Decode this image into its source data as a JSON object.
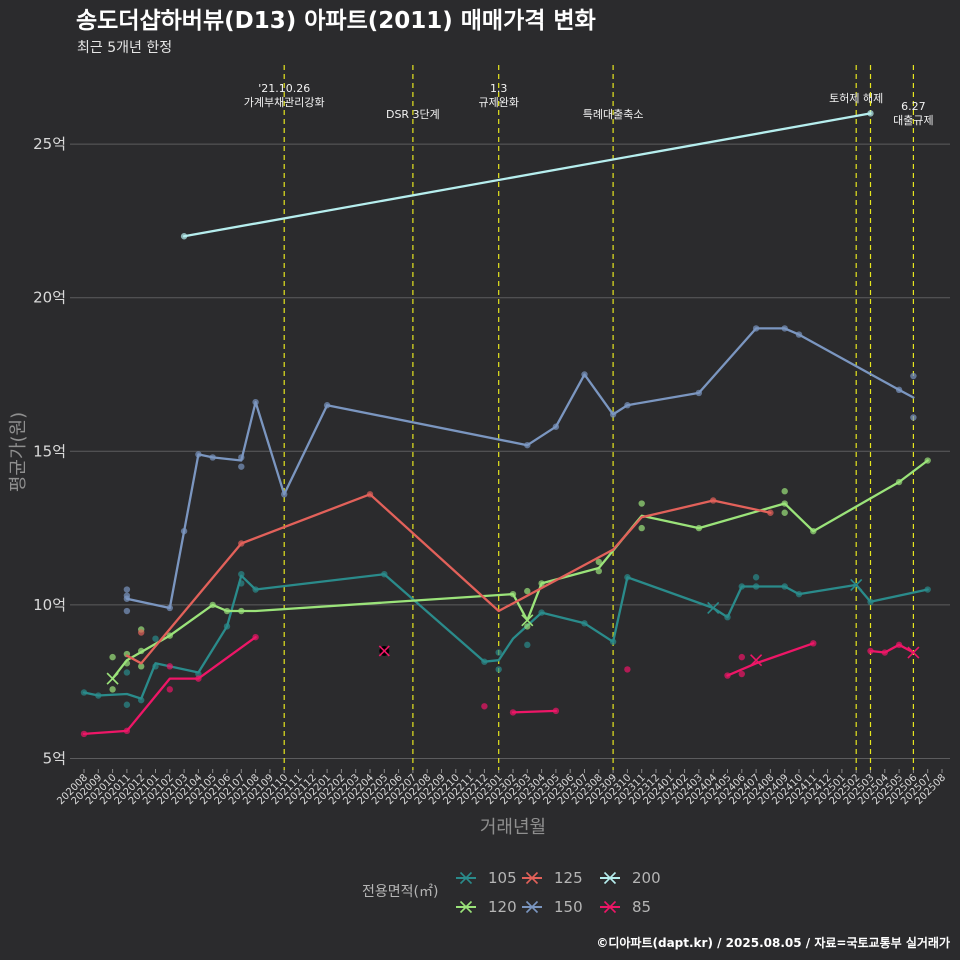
{
  "chart_data": {
    "type": "line",
    "title": "송도더샵하버뷰(D13) 아파트(2011) 매매가격 변화",
    "subtitle": "최근 5개년 한정",
    "xlabel": "거래년월",
    "ylabel": "평균가(원)",
    "caption": "©디아파트(dapt.kr) / 2025.08.05 / 자료=국토교통부 실거래가",
    "legend_title": "전용면적(㎡)",
    "legend_position": "bottom",
    "grid": true,
    "ylim": [
      4.5,
      27
    ],
    "yticks": [
      5,
      10,
      15,
      20,
      25
    ],
    "ytick_labels": [
      "5억",
      "10억",
      "15억",
      "20억",
      "25억"
    ],
    "x_start": "2020-08",
    "x_end": "2025-08",
    "x_categories": [
      "202008",
      "202009",
      "202010",
      "202011",
      "202012",
      "202101",
      "202102",
      "202103",
      "202104",
      "202105",
      "202106",
      "202107",
      "202108",
      "202109",
      "202110",
      "202111",
      "202112",
      "202201",
      "202202",
      "202203",
      "202204",
      "202205",
      "202206",
      "202207",
      "202208",
      "202209",
      "202210",
      "202211",
      "202212",
      "202301",
      "202302",
      "202303",
      "202304",
      "202305",
      "202306",
      "202307",
      "202308",
      "202309",
      "202310",
      "202311",
      "202312",
      "202401",
      "202402",
      "202403",
      "202404",
      "202405",
      "202406",
      "202407",
      "202408",
      "202409",
      "202410",
      "202411",
      "202412",
      "202501",
      "202502",
      "202503",
      "202504",
      "202505",
      "202506",
      "202507",
      "202508"
    ],
    "events": [
      {
        "date": "2021-10",
        "lines": [
          "'21.10.26",
          "가계부채관리강화"
        ]
      },
      {
        "date": "2022-07",
        "lines": [
          "DSR 3단계"
        ]
      },
      {
        "date": "2023-01",
        "lines": [
          "1.3",
          "규제완화"
        ]
      },
      {
        "date": "2023-09",
        "lines": [
          "특례대출축소"
        ]
      },
      {
        "date": "2025-02",
        "lines": [
          "토허제 해제"
        ]
      },
      {
        "date": "2025-03",
        "lines": []
      },
      {
        "date": "2025-06",
        "lines": [
          "6.27",
          "대출규제"
        ]
      }
    ],
    "series": [
      {
        "name": "105",
        "color": "#2a8b8b",
        "line": [
          [
            "2020-08",
            7.15
          ],
          [
            "2020-09",
            7.05
          ],
          [
            "2020-11",
            7.1
          ],
          [
            "2020-12",
            6.95
          ],
          [
            "2021-01",
            8.1
          ],
          [
            "2021-04",
            7.8
          ],
          [
            "2021-06",
            9.3
          ],
          [
            "2021-07",
            10.95
          ],
          [
            "2021-08",
            10.5
          ],
          [
            "2022-05",
            11.0
          ],
          [
            "2022-12",
            8.15
          ],
          [
            "2023-01",
            8.2
          ],
          [
            "2023-02",
            8.9
          ],
          [
            "2023-04",
            9.75
          ],
          [
            "2023-07",
            9.4
          ],
          [
            "2023-09",
            8.8
          ],
          [
            "2023-10",
            10.9
          ],
          [
            "2024-04",
            9.9
          ],
          [
            "2024-05",
            9.6
          ],
          [
            "2024-06",
            10.6
          ],
          [
            "2024-09",
            10.6
          ],
          [
            "2024-10",
            10.35
          ],
          [
            "2025-02",
            10.65
          ],
          [
            "2025-03",
            10.1
          ],
          [
            "2025-07",
            10.5
          ]
        ],
        "points": [
          [
            "2020-08",
            7.15
          ],
          [
            "2020-09",
            7.05
          ],
          [
            "2020-11",
            6.75
          ],
          [
            "2020-11",
            7.8
          ],
          [
            "2020-12",
            6.9
          ],
          [
            "2021-01",
            8.0
          ],
          [
            "2021-01",
            8.9
          ],
          [
            "2021-04",
            7.75
          ],
          [
            "2021-06",
            9.3
          ],
          [
            "2021-07",
            11.0
          ],
          [
            "2021-07",
            10.7
          ],
          [
            "2021-08",
            10.5
          ],
          [
            "2022-05",
            11.0
          ],
          [
            "2022-12",
            8.15
          ],
          [
            "2023-01",
            7.9
          ],
          [
            "2023-01",
            8.45
          ],
          [
            "2023-03",
            8.7
          ],
          [
            "2023-04",
            9.75
          ],
          [
            "2023-07",
            9.4
          ],
          [
            "2023-09",
            8.8
          ],
          [
            "2023-10",
            10.9
          ],
          [
            "2024-05",
            9.6
          ],
          [
            "2024-06",
            10.6
          ],
          [
            "2024-07",
            10.9
          ],
          [
            "2024-07",
            10.6
          ],
          [
            "2024-09",
            10.6
          ],
          [
            "2024-10",
            10.35
          ],
          [
            "2025-03",
            10.1
          ],
          [
            "2025-07",
            10.5
          ]
        ],
        "x_marks": [
          [
            "2024-04",
            9.9
          ],
          [
            "2025-02",
            10.65
          ]
        ]
      },
      {
        "name": "120",
        "color": "#9be37a",
        "line": [
          [
            "2020-10",
            7.6
          ],
          [
            "2020-11",
            8.2
          ],
          [
            "2021-02",
            9.0
          ],
          [
            "2021-05",
            10.0
          ],
          [
            "2021-06",
            9.8
          ],
          [
            "2021-08",
            9.8
          ],
          [
            "2023-02",
            10.35
          ],
          [
            "2023-03",
            9.5
          ],
          [
            "2023-04",
            10.7
          ],
          [
            "2023-08",
            11.2
          ],
          [
            "2023-11",
            12.9
          ],
          [
            "2024-03",
            12.5
          ],
          [
            "2024-09",
            13.3
          ],
          [
            "2024-11",
            12.4
          ],
          [
            "2025-05",
            14.0
          ],
          [
            "2025-07",
            14.7
          ]
        ],
        "points": [
          [
            "2020-10",
            8.3
          ],
          [
            "2020-10",
            7.25
          ],
          [
            "2020-11",
            8.4
          ],
          [
            "2020-11",
            8.1
          ],
          [
            "2020-12",
            8.5
          ],
          [
            "2020-12",
            9.2
          ],
          [
            "2020-12",
            8.0
          ],
          [
            "2021-02",
            9.0
          ],
          [
            "2021-05",
            10.0
          ],
          [
            "2021-06",
            9.8
          ],
          [
            "2021-07",
            9.8
          ],
          [
            "2023-02",
            10.35
          ],
          [
            "2023-03",
            9.3
          ],
          [
            "2023-03",
            10.45
          ],
          [
            "2023-04",
            10.7
          ],
          [
            "2023-08",
            11.4
          ],
          [
            "2023-08",
            11.1
          ],
          [
            "2023-11",
            13.3
          ],
          [
            "2023-11",
            12.5
          ],
          [
            "2024-03",
            12.5
          ],
          [
            "2024-09",
            13.7
          ],
          [
            "2024-09",
            13.3
          ],
          [
            "2024-09",
            13.0
          ],
          [
            "2024-11",
            12.4
          ],
          [
            "2025-05",
            14.0
          ],
          [
            "2025-07",
            14.7
          ]
        ],
        "x_marks": [
          [
            "2020-10",
            7.6
          ],
          [
            "2023-03",
            9.5
          ]
        ]
      },
      {
        "name": "125",
        "color": "#e2615a",
        "line": [
          [
            "2020-11",
            8.35
          ],
          [
            "2020-12",
            8.1
          ],
          [
            "2021-07",
            12.0
          ],
          [
            "2022-04",
            13.6
          ],
          [
            "2023-01",
            9.8
          ],
          [
            "2023-09",
            11.8
          ],
          [
            "2023-11",
            12.85
          ],
          [
            "2024-04",
            13.4
          ],
          [
            "2024-08",
            13.0
          ]
        ],
        "points": [
          [
            "2020-12",
            9.1
          ],
          [
            "2021-07",
            12.0
          ],
          [
            "2022-04",
            13.6
          ],
          [
            "2024-04",
            13.4
          ],
          [
            "2024-08",
            13.0
          ]
        ],
        "x_marks": []
      },
      {
        "name": "150",
        "color": "#7b96c0",
        "line": [
          [
            "2020-11",
            10.2
          ],
          [
            "2021-02",
            9.9
          ],
          [
            "2021-03",
            12.4
          ],
          [
            "2021-04",
            14.9
          ],
          [
            "2021-05",
            14.8
          ],
          [
            "2021-07",
            14.7
          ],
          [
            "2021-08",
            16.6
          ],
          [
            "2021-10",
            13.6
          ],
          [
            "2022-01",
            16.5
          ],
          [
            "2023-03",
            15.2
          ],
          [
            "2023-05",
            15.8
          ],
          [
            "2023-07",
            17.5
          ],
          [
            "2023-09",
            16.2
          ],
          [
            "2023-10",
            16.5
          ],
          [
            "2024-03",
            16.9
          ],
          [
            "2024-07",
            19.0
          ],
          [
            "2024-09",
            19.0
          ],
          [
            "2024-10",
            18.8
          ],
          [
            "2025-05",
            17.0
          ],
          [
            "2025-06",
            16.75
          ]
        ],
        "points": [
          [
            "2020-11",
            10.2
          ],
          [
            "2020-11",
            10.5
          ],
          [
            "2020-11",
            9.8
          ],
          [
            "2020-11",
            10.3
          ],
          [
            "2021-02",
            9.9
          ],
          [
            "2021-03",
            12.4
          ],
          [
            "2021-04",
            14.9
          ],
          [
            "2021-05",
            14.8
          ],
          [
            "2021-07",
            14.8
          ],
          [
            "2021-07",
            14.5
          ],
          [
            "2021-08",
            16.6
          ],
          [
            "2021-10",
            13.6
          ],
          [
            "2022-01",
            16.5
          ],
          [
            "2023-03",
            15.2
          ],
          [
            "2023-05",
            15.8
          ],
          [
            "2023-07",
            17.5
          ],
          [
            "2023-09",
            16.2
          ],
          [
            "2023-10",
            16.5
          ],
          [
            "2024-03",
            16.9
          ],
          [
            "2024-07",
            19.0
          ],
          [
            "2024-09",
            19.0
          ],
          [
            "2024-10",
            18.8
          ],
          [
            "2025-05",
            17.0
          ],
          [
            "2025-06",
            17.45
          ],
          [
            "2025-06",
            16.1
          ]
        ],
        "x_marks": []
      },
      {
        "name": "200",
        "color": "#b6eeee",
        "line": [
          [
            "2021-03",
            22.0
          ],
          [
            "2025-03",
            26.0
          ]
        ],
        "points": [
          [
            "2021-03",
            22.0
          ],
          [
            "2025-03",
            26.0
          ]
        ],
        "x_marks": []
      },
      {
        "name": "85",
        "color": "#ee1667",
        "segments": [
          [
            [
              "2020-08",
              5.8
            ],
            [
              "2020-11",
              5.9
            ],
            [
              "2021-02",
              7.6
            ],
            [
              "2021-04",
              7.6
            ],
            [
              "2021-08",
              8.95
            ]
          ],
          [
            [
              "2023-02",
              6.5
            ],
            [
              "2023-05",
              6.55
            ]
          ],
          [
            [
              "2024-05",
              7.7
            ],
            [
              "2024-07",
              8.1
            ],
            [
              "2024-11",
              8.75
            ]
          ],
          [
            [
              "2025-03",
              8.5
            ],
            [
              "2025-04",
              8.45
            ],
            [
              "2025-05",
              8.7
            ],
            [
              "2025-06",
              8.45
            ]
          ]
        ],
        "points": [
          [
            "2020-08",
            5.8
          ],
          [
            "2020-11",
            5.9
          ],
          [
            "2021-02",
            8.0
          ],
          [
            "2021-02",
            7.25
          ],
          [
            "2021-04",
            7.6
          ],
          [
            "2021-08",
            8.95
          ],
          [
            "2022-12",
            6.7
          ],
          [
            "2023-02",
            6.5
          ],
          [
            "2023-05",
            6.55
          ],
          [
            "2023-10",
            7.9
          ],
          [
            "2024-05",
            7.7
          ],
          [
            "2024-06",
            7.75
          ],
          [
            "2024-06",
            8.3
          ],
          [
            "2024-11",
            8.75
          ],
          [
            "2025-03",
            8.5
          ],
          [
            "2025-04",
            8.45
          ],
          [
            "2025-05",
            8.7
          ]
        ],
        "x_marks": [
          [
            "2022-05",
            8.5
          ],
          [
            "2024-07",
            8.2
          ],
          [
            "2025-06",
            8.45
          ]
        ]
      }
    ],
    "legend_order": [
      "105",
      "120",
      "125",
      "150",
      "200",
      "85"
    ]
  }
}
